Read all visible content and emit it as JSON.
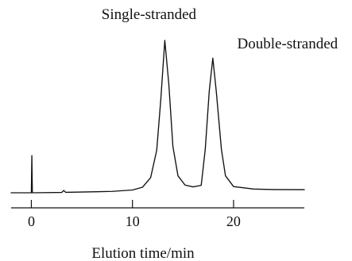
{
  "chart_data": {
    "type": "line",
    "title": "",
    "xlabel": "Elution time/min",
    "ylabel": "",
    "xlim": [
      -2,
      27
    ],
    "ylim": [
      0,
      100
    ],
    "x_ticks": [
      0,
      10,
      20
    ],
    "grid": false,
    "legend": "none",
    "series": [
      {
        "points": [
          {
            "x": -2.0,
            "y": 0
          },
          {
            "x": 0.0,
            "y": 0
          },
          {
            "x": 0.05,
            "y": 24
          },
          {
            "x": 0.1,
            "y": 0
          },
          {
            "x": 3.0,
            "y": 0.2
          },
          {
            "x": 3.2,
            "y": 1.5
          },
          {
            "x": 3.4,
            "y": 0.3
          },
          {
            "x": 8.0,
            "y": 0.9
          },
          {
            "x": 10.0,
            "y": 1.8
          },
          {
            "x": 11.0,
            "y": 3.6
          },
          {
            "x": 11.8,
            "y": 9.8
          },
          {
            "x": 12.4,
            "y": 27.5
          },
          {
            "x": 12.8,
            "y": 60
          },
          {
            "x": 13.2,
            "y": 98.5
          },
          {
            "x": 13.6,
            "y": 70
          },
          {
            "x": 14.0,
            "y": 30
          },
          {
            "x": 14.5,
            "y": 11
          },
          {
            "x": 15.2,
            "y": 5
          },
          {
            "x": 16.0,
            "y": 3.8
          },
          {
            "x": 16.8,
            "y": 4.8
          },
          {
            "x": 17.2,
            "y": 28
          },
          {
            "x": 17.6,
            "y": 66
          },
          {
            "x": 17.95,
            "y": 87
          },
          {
            "x": 18.3,
            "y": 65
          },
          {
            "x": 18.8,
            "y": 28
          },
          {
            "x": 19.2,
            "y": 11
          },
          {
            "x": 20.0,
            "y": 4
          },
          {
            "x": 22.0,
            "y": 2.4
          },
          {
            "x": 24.0,
            "y": 2.1
          },
          {
            "x": 27.0,
            "y": 2.0
          }
        ]
      }
    ],
    "annotations": [
      {
        "text": "Single-stranded",
        "x": 13.2
      },
      {
        "text": "Double-stranded",
        "x": 17.95
      }
    ]
  }
}
